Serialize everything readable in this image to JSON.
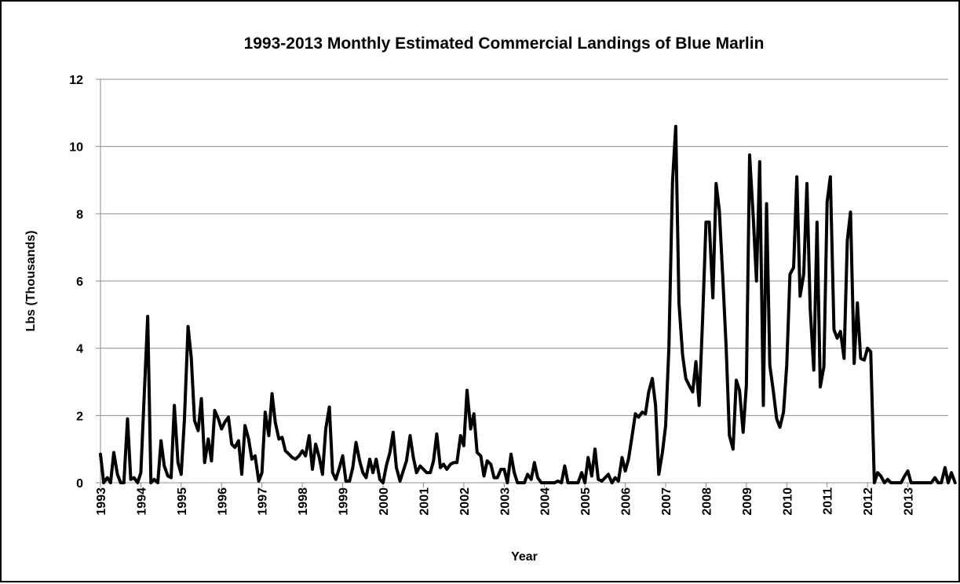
{
  "chart_data": {
    "type": "line",
    "title": "1993-2013 Monthly Estimated Commercial Landings of Blue Marlin",
    "xlabel": "Year",
    "ylabel": "Lbs (Thousands)",
    "x_tick_labels": [
      "1993",
      "1994",
      "1995",
      "1996",
      "1997",
      "1998",
      "1999",
      "2000",
      "2001",
      "2002",
      "2003",
      "2004",
      "2005",
      "2006",
      "2007",
      "2008",
      "2009",
      "2010",
      "2011",
      "2012",
      "2013"
    ],
    "y_tick_labels": [
      "0",
      "2",
      "4",
      "6",
      "8",
      "10",
      "12"
    ],
    "ylim": [
      0,
      12
    ],
    "xlim": [
      1993,
      2014
    ],
    "grid": "horizontal",
    "legend": "none",
    "line_color": "#000000",
    "series": [
      {
        "points": [
          [
            1993.0,
            0.85
          ],
          [
            1993.08,
            0.0
          ],
          [
            1993.17,
            0.15
          ],
          [
            1993.25,
            0.0
          ],
          [
            1993.33,
            0.9
          ],
          [
            1993.42,
            0.25
          ],
          [
            1993.5,
            0.0
          ],
          [
            1993.58,
            0.0
          ],
          [
            1993.67,
            1.9
          ],
          [
            1993.75,
            0.1
          ],
          [
            1993.83,
            0.15
          ],
          [
            1993.92,
            0.0
          ],
          [
            1994.0,
            0.3
          ],
          [
            1994.08,
            2.5
          ],
          [
            1994.17,
            4.95
          ],
          [
            1994.25,
            0.0
          ],
          [
            1994.33,
            0.1
          ],
          [
            1994.42,
            0.0
          ],
          [
            1994.5,
            1.25
          ],
          [
            1994.58,
            0.5
          ],
          [
            1994.67,
            0.2
          ],
          [
            1994.75,
            0.15
          ],
          [
            1994.83,
            2.3
          ],
          [
            1994.92,
            0.6
          ],
          [
            1995.0,
            0.25
          ],
          [
            1995.08,
            1.9
          ],
          [
            1995.17,
            4.65
          ],
          [
            1995.25,
            3.7
          ],
          [
            1995.33,
            1.85
          ],
          [
            1995.42,
            1.55
          ],
          [
            1995.5,
            2.5
          ],
          [
            1995.58,
            0.6
          ],
          [
            1995.67,
            1.3
          ],
          [
            1995.75,
            0.65
          ],
          [
            1995.83,
            2.15
          ],
          [
            1995.92,
            1.9
          ],
          [
            1996.0,
            1.6
          ],
          [
            1996.08,
            1.8
          ],
          [
            1996.17,
            1.95
          ],
          [
            1996.25,
            1.15
          ],
          [
            1996.33,
            1.05
          ],
          [
            1996.42,
            1.25
          ],
          [
            1996.5,
            0.25
          ],
          [
            1996.58,
            1.7
          ],
          [
            1996.67,
            1.3
          ],
          [
            1996.75,
            0.7
          ],
          [
            1996.83,
            0.8
          ],
          [
            1996.92,
            0.05
          ],
          [
            1997.0,
            0.3
          ],
          [
            1997.08,
            2.1
          ],
          [
            1997.17,
            1.4
          ],
          [
            1997.25,
            2.65
          ],
          [
            1997.33,
            1.8
          ],
          [
            1997.42,
            1.3
          ],
          [
            1997.5,
            1.35
          ],
          [
            1997.58,
            0.95
          ],
          [
            1997.67,
            0.85
          ],
          [
            1997.75,
            0.75
          ],
          [
            1997.83,
            0.7
          ],
          [
            1997.92,
            0.8
          ],
          [
            1998.0,
            0.95
          ],
          [
            1998.08,
            0.8
          ],
          [
            1998.17,
            1.4
          ],
          [
            1998.25,
            0.4
          ],
          [
            1998.33,
            1.15
          ],
          [
            1998.42,
            0.75
          ],
          [
            1998.5,
            0.25
          ],
          [
            1998.58,
            1.6
          ],
          [
            1998.67,
            2.25
          ],
          [
            1998.75,
            0.3
          ],
          [
            1998.83,
            0.1
          ],
          [
            1998.92,
            0.45
          ],
          [
            1999.0,
            0.8
          ],
          [
            1999.08,
            0.05
          ],
          [
            1999.17,
            0.05
          ],
          [
            1999.25,
            0.45
          ],
          [
            1999.33,
            1.2
          ],
          [
            1999.42,
            0.65
          ],
          [
            1999.5,
            0.3
          ],
          [
            1999.58,
            0.15
          ],
          [
            1999.67,
            0.7
          ],
          [
            1999.75,
            0.3
          ],
          [
            1999.83,
            0.7
          ],
          [
            1999.92,
            0.1
          ],
          [
            2000.0,
            0.0
          ],
          [
            2000.08,
            0.5
          ],
          [
            2000.17,
            0.9
          ],
          [
            2000.25,
            1.5
          ],
          [
            2000.33,
            0.45
          ],
          [
            2000.42,
            0.05
          ],
          [
            2000.5,
            0.35
          ],
          [
            2000.58,
            0.65
          ],
          [
            2000.67,
            1.4
          ],
          [
            2000.75,
            0.75
          ],
          [
            2000.83,
            0.3
          ],
          [
            2000.92,
            0.5
          ],
          [
            2001.0,
            0.4
          ],
          [
            2001.08,
            0.3
          ],
          [
            2001.17,
            0.3
          ],
          [
            2001.25,
            0.65
          ],
          [
            2001.33,
            1.45
          ],
          [
            2001.42,
            0.45
          ],
          [
            2001.5,
            0.55
          ],
          [
            2001.58,
            0.4
          ],
          [
            2001.67,
            0.55
          ],
          [
            2001.75,
            0.6
          ],
          [
            2001.83,
            0.6
          ],
          [
            2001.92,
            1.4
          ],
          [
            2002.0,
            1.1
          ],
          [
            2002.08,
            2.75
          ],
          [
            2002.17,
            1.6
          ],
          [
            2002.25,
            2.05
          ],
          [
            2002.33,
            0.9
          ],
          [
            2002.42,
            0.8
          ],
          [
            2002.5,
            0.2
          ],
          [
            2002.58,
            0.65
          ],
          [
            2002.67,
            0.55
          ],
          [
            2002.75,
            0.15
          ],
          [
            2002.83,
            0.15
          ],
          [
            2002.92,
            0.4
          ],
          [
            2003.0,
            0.4
          ],
          [
            2003.08,
            0.0
          ],
          [
            2003.17,
            0.85
          ],
          [
            2003.25,
            0.3
          ],
          [
            2003.33,
            0.0
          ],
          [
            2003.42,
            0.0
          ],
          [
            2003.5,
            0.0
          ],
          [
            2003.58,
            0.25
          ],
          [
            2003.67,
            0.1
          ],
          [
            2003.75,
            0.6
          ],
          [
            2003.83,
            0.15
          ],
          [
            2003.92,
            0.0
          ],
          [
            2004.0,
            0.0
          ],
          [
            2004.08,
            0.0
          ],
          [
            2004.17,
            0.0
          ],
          [
            2004.25,
            0.0
          ],
          [
            2004.33,
            0.05
          ],
          [
            2004.42,
            0.0
          ],
          [
            2004.5,
            0.5
          ],
          [
            2004.58,
            0.0
          ],
          [
            2004.67,
            0.0
          ],
          [
            2004.75,
            0.0
          ],
          [
            2004.83,
            0.0
          ],
          [
            2004.92,
            0.3
          ],
          [
            2005.0,
            0.0
          ],
          [
            2005.08,
            0.75
          ],
          [
            2005.17,
            0.2
          ],
          [
            2005.25,
            1.0
          ],
          [
            2005.33,
            0.1
          ],
          [
            2005.42,
            0.05
          ],
          [
            2005.5,
            0.15
          ],
          [
            2005.58,
            0.25
          ],
          [
            2005.67,
            0.0
          ],
          [
            2005.75,
            0.15
          ],
          [
            2005.83,
            0.05
          ],
          [
            2005.92,
            0.75
          ],
          [
            2006.0,
            0.35
          ],
          [
            2006.08,
            0.7
          ],
          [
            2006.17,
            1.4
          ],
          [
            2006.25,
            2.05
          ],
          [
            2006.33,
            1.95
          ],
          [
            2006.42,
            2.1
          ],
          [
            2006.5,
            2.05
          ],
          [
            2006.58,
            2.7
          ],
          [
            2006.67,
            3.1
          ],
          [
            2006.75,
            2.3
          ],
          [
            2006.83,
            0.25
          ],
          [
            2006.92,
            0.9
          ],
          [
            2007.0,
            1.7
          ],
          [
            2007.08,
            4.0
          ],
          [
            2007.17,
            8.95
          ],
          [
            2007.25,
            10.6
          ],
          [
            2007.33,
            5.35
          ],
          [
            2007.42,
            3.8
          ],
          [
            2007.5,
            3.1
          ],
          [
            2007.58,
            2.9
          ],
          [
            2007.67,
            2.7
          ],
          [
            2007.75,
            3.6
          ],
          [
            2007.83,
            2.3
          ],
          [
            2007.92,
            5.0
          ],
          [
            2008.0,
            7.75
          ],
          [
            2008.08,
            7.75
          ],
          [
            2008.17,
            5.5
          ],
          [
            2008.25,
            8.9
          ],
          [
            2008.33,
            8.1
          ],
          [
            2008.42,
            6.0
          ],
          [
            2008.5,
            4.0
          ],
          [
            2008.58,
            1.4
          ],
          [
            2008.67,
            1.0
          ],
          [
            2008.75,
            3.05
          ],
          [
            2008.83,
            2.75
          ],
          [
            2008.92,
            1.5
          ],
          [
            2009.0,
            2.9
          ],
          [
            2009.08,
            9.75
          ],
          [
            2009.17,
            7.9
          ],
          [
            2009.25,
            6.0
          ],
          [
            2009.33,
            9.55
          ],
          [
            2009.42,
            2.3
          ],
          [
            2009.5,
            8.3
          ],
          [
            2009.58,
            3.5
          ],
          [
            2009.67,
            2.7
          ],
          [
            2009.75,
            1.9
          ],
          [
            2009.83,
            1.65
          ],
          [
            2009.92,
            2.1
          ],
          [
            2010.0,
            3.5
          ],
          [
            2010.08,
            6.2
          ],
          [
            2010.17,
            6.4
          ],
          [
            2010.25,
            9.1
          ],
          [
            2010.33,
            5.55
          ],
          [
            2010.42,
            6.2
          ],
          [
            2010.5,
            8.9
          ],
          [
            2010.58,
            5.2
          ],
          [
            2010.67,
            3.35
          ],
          [
            2010.75,
            7.75
          ],
          [
            2010.83,
            2.85
          ],
          [
            2010.92,
            3.45
          ],
          [
            2011.0,
            8.35
          ],
          [
            2011.08,
            9.1
          ],
          [
            2011.17,
            4.55
          ],
          [
            2011.25,
            4.3
          ],
          [
            2011.33,
            4.5
          ],
          [
            2011.42,
            3.7
          ],
          [
            2011.5,
            7.2
          ],
          [
            2011.58,
            8.05
          ],
          [
            2011.67,
            3.55
          ],
          [
            2011.75,
            5.35
          ],
          [
            2011.83,
            3.7
          ],
          [
            2011.92,
            3.65
          ],
          [
            2012.0,
            4.0
          ],
          [
            2012.08,
            3.9
          ],
          [
            2012.17,
            0.0
          ],
          [
            2012.25,
            0.3
          ],
          [
            2012.33,
            0.2
          ],
          [
            2012.42,
            0.0
          ],
          [
            2012.5,
            0.1
          ],
          [
            2012.58,
            0.0
          ],
          [
            2012.67,
            0.0
          ],
          [
            2012.75,
            0.0
          ],
          [
            2012.83,
            0.0
          ],
          [
            2012.92,
            0.2
          ],
          [
            2013.0,
            0.35
          ],
          [
            2013.08,
            0.0
          ],
          [
            2013.17,
            0.0
          ],
          [
            2013.25,
            0.0
          ],
          [
            2013.33,
            0.0
          ],
          [
            2013.42,
            0.0
          ],
          [
            2013.5,
            0.0
          ],
          [
            2013.58,
            0.0
          ],
          [
            2013.67,
            0.15
          ],
          [
            2013.75,
            0.0
          ],
          [
            2013.83,
            0.0
          ],
          [
            2013.92,
            0.45
          ],
          [
            2014.0,
            0.0
          ],
          [
            2014.08,
            0.3
          ],
          [
            2014.17,
            0.0
          ]
        ]
      }
    ]
  }
}
